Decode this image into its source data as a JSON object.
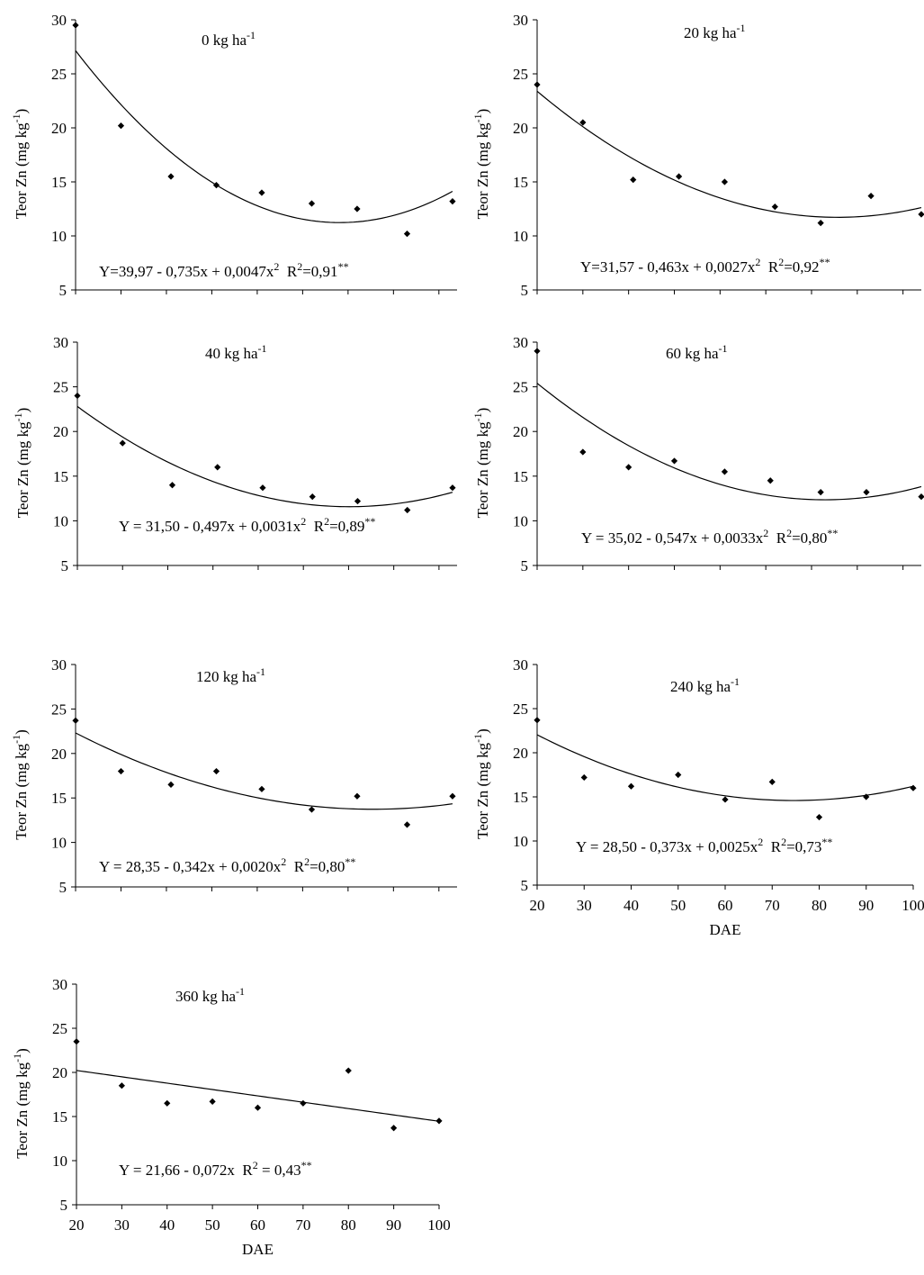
{
  "chart_data": [
    {
      "type": "scatter",
      "title": "0 kg ha",
      "title_sup": "-1",
      "ylabel": "Teor Zn (mg kg",
      "ylabel_sup": "-1",
      "ylabel_end": ")",
      "xlabel": "",
      "ylim": [
        5,
        30
      ],
      "xlim": [
        20,
        104
      ],
      "yticks": [
        "5",
        "10",
        "15",
        "20",
        "25",
        "30"
      ],
      "xticks": [],
      "series": [
        {
          "x": [
            20,
            30,
            41,
            51,
            61,
            72,
            82,
            93,
            103
          ],
          "y": [
            29.5,
            20.2,
            15.5,
            14.7,
            14.0,
            13.0,
            12.5,
            10.2,
            13.2
          ]
        }
      ],
      "fit": {
        "a": 39.97,
        "b": -0.735,
        "c": 0.0047
      },
      "equation": "Y=39,97 - 0,735x + 0,0047x",
      "eq_sup1": "2",
      "eq_r2": "R",
      "eq_sup2": "2",
      "eq_r2val": "=0,91",
      "eq_sup3": "**"
    },
    {
      "type": "scatter",
      "title": "20 kg ha",
      "title_sup": "-1",
      "ylabel": "Teor Zn (mg kg",
      "ylabel_sup": "-1",
      "ylabel_end": ")",
      "xlabel": "",
      "ylim": [
        5,
        30
      ],
      "xlim": [
        20,
        104
      ],
      "yticks": [
        "5",
        "10",
        "15",
        "20",
        "25",
        "30"
      ],
      "xticks": [],
      "series": [
        {
          "x": [
            20,
            30,
            41,
            51,
            61,
            72,
            82,
            93,
            104
          ],
          "y": [
            24.0,
            20.5,
            15.2,
            15.5,
            15.0,
            12.7,
            11.2,
            13.7,
            12.0
          ]
        }
      ],
      "fit": {
        "a": 31.57,
        "b": -0.463,
        "c": 0.0027
      },
      "equation": "Y=31,57 - 0,463x + 0,0027x",
      "eq_sup1": "2",
      "eq_r2": "R",
      "eq_sup2": "2",
      "eq_r2val": "=0,92",
      "eq_sup3": "**"
    },
    {
      "type": "scatter",
      "title": "40 kg ha",
      "title_sup": "-1",
      "ylabel": "Teor Zn (mg kg",
      "ylabel_sup": "-1",
      "ylabel_end": ")",
      "xlabel": "",
      "ylim": [
        5,
        30
      ],
      "xlim": [
        20,
        104
      ],
      "yticks": [
        "5",
        "10",
        "15",
        "20",
        "25",
        "30"
      ],
      "xticks": [],
      "series": [
        {
          "x": [
            20,
            30,
            41,
            51,
            61,
            72,
            82,
            93,
            103
          ],
          "y": [
            24.0,
            18.7,
            14.0,
            16.0,
            13.7,
            12.7,
            12.2,
            11.2,
            13.7
          ]
        }
      ],
      "fit": {
        "a": 31.5,
        "b": -0.497,
        "c": 0.0031
      },
      "equation": "Y = 31,50 - 0,497x + 0,0031x",
      "eq_sup1": "2",
      "eq_r2": "R",
      "eq_sup2": "2",
      "eq_r2val": "=0,89",
      "eq_sup3": "**"
    },
    {
      "type": "scatter",
      "title": "60 kg ha",
      "title_sup": "-1",
      "ylabel": "Teor Zn (mg kg",
      "ylabel_sup": "-1",
      "ylabel_end": ")",
      "xlabel": "",
      "ylim": [
        5,
        30
      ],
      "xlim": [
        20,
        104
      ],
      "yticks": [
        "5",
        "10",
        "15",
        "20",
        "25",
        "30"
      ],
      "xticks": [],
      "series": [
        {
          "x": [
            20,
            30,
            40,
            50,
            61,
            71,
            82,
            92,
            104
          ],
          "y": [
            29.0,
            17.7,
            16.0,
            16.7,
            15.5,
            14.5,
            13.2,
            13.2,
            12.7
          ]
        }
      ],
      "fit": {
        "a": 35.02,
        "b": -0.547,
        "c": 0.0033
      },
      "equation": "Y = 35,02 - 0,547x + 0,0033x",
      "eq_sup1": "2",
      "eq_r2": "R",
      "eq_sup2": "2",
      "eq_r2val": "=0,80",
      "eq_sup3": "**"
    },
    {
      "type": "scatter",
      "title": "120 kg ha",
      "title_sup": "-1",
      "ylabel": "Teor Zn (mg kg",
      "ylabel_sup": "-1",
      "ylabel_end": ")",
      "xlabel": "",
      "ylim": [
        5,
        30
      ],
      "xlim": [
        20,
        104
      ],
      "yticks": [
        "5",
        "10",
        "15",
        "20",
        "25",
        "30"
      ],
      "xticks": [],
      "series": [
        {
          "x": [
            20,
            30,
            41,
            51,
            61,
            72,
            82,
            93,
            103
          ],
          "y": [
            23.7,
            18.0,
            16.5,
            18.0,
            16.0,
            13.7,
            15.2,
            12.0,
            15.2
          ]
        }
      ],
      "fit": {
        "a": 28.35,
        "b": -0.342,
        "c": 0.002
      },
      "equation": "Y = 28,35 - 0,342x + 0,0020x",
      "eq_sup1": "2",
      "eq_r2": "R",
      "eq_sup2": "2",
      "eq_r2val": "=0,80",
      "eq_sup3": "**"
    },
    {
      "type": "scatter",
      "title": "240 kg ha",
      "title_sup": "-1",
      "ylabel": "Teor Zn (mg kg",
      "ylabel_sup": "-1",
      "ylabel_end": ")",
      "xlabel": "DAE",
      "ylim": [
        5,
        30
      ],
      "xlim": [
        20,
        100
      ],
      "yticks": [
        "5",
        "10",
        "15",
        "20",
        "25",
        "30"
      ],
      "xticks": [
        "20",
        "30",
        "40",
        "50",
        "60",
        "70",
        "80",
        "90",
        "100"
      ],
      "series": [
        {
          "x": [
            20,
            30,
            40,
            50,
            60,
            70,
            80,
            90,
            100
          ],
          "y": [
            23.7,
            17.2,
            16.2,
            17.5,
            14.7,
            16.7,
            12.7,
            15.0,
            16.0
          ]
        }
      ],
      "fit": {
        "a": 28.5,
        "b": -0.373,
        "c": 0.0025
      },
      "equation": "Y = 28,50 - 0,373x + 0,0025x",
      "eq_sup1": "2",
      "eq_r2": "R",
      "eq_sup2": "2",
      "eq_r2val": "=0,73",
      "eq_sup3": "**"
    },
    {
      "type": "scatter",
      "title": "360 kg ha",
      "title_sup": "-1",
      "ylabel": "Teor Zn (mg kg",
      "ylabel_sup": "-1",
      "ylabel_end": ")",
      "xlabel": "DAE",
      "ylim": [
        5,
        30
      ],
      "xlim": [
        20,
        100
      ],
      "yticks": [
        "5",
        "10",
        "15",
        "20",
        "25",
        "30"
      ],
      "xticks": [
        "20",
        "30",
        "40",
        "50",
        "60",
        "70",
        "80",
        "90",
        "100"
      ],
      "series": [
        {
          "x": [
            20,
            30,
            40,
            50,
            60,
            70,
            80,
            90,
            100
          ],
          "y": [
            23.5,
            18.5,
            16.5,
            16.7,
            16.0,
            16.5,
            20.2,
            13.7,
            14.5
          ]
        }
      ],
      "fit": {
        "a": 21.66,
        "b": -0.072,
        "c": 0
      },
      "equation": "Y = 21,66 - 0,072x",
      "eq_sup1": "",
      "eq_r2": "R",
      "eq_sup2": "2",
      "eq_r2val": " = 0,43",
      "eq_sup3": "**"
    }
  ]
}
